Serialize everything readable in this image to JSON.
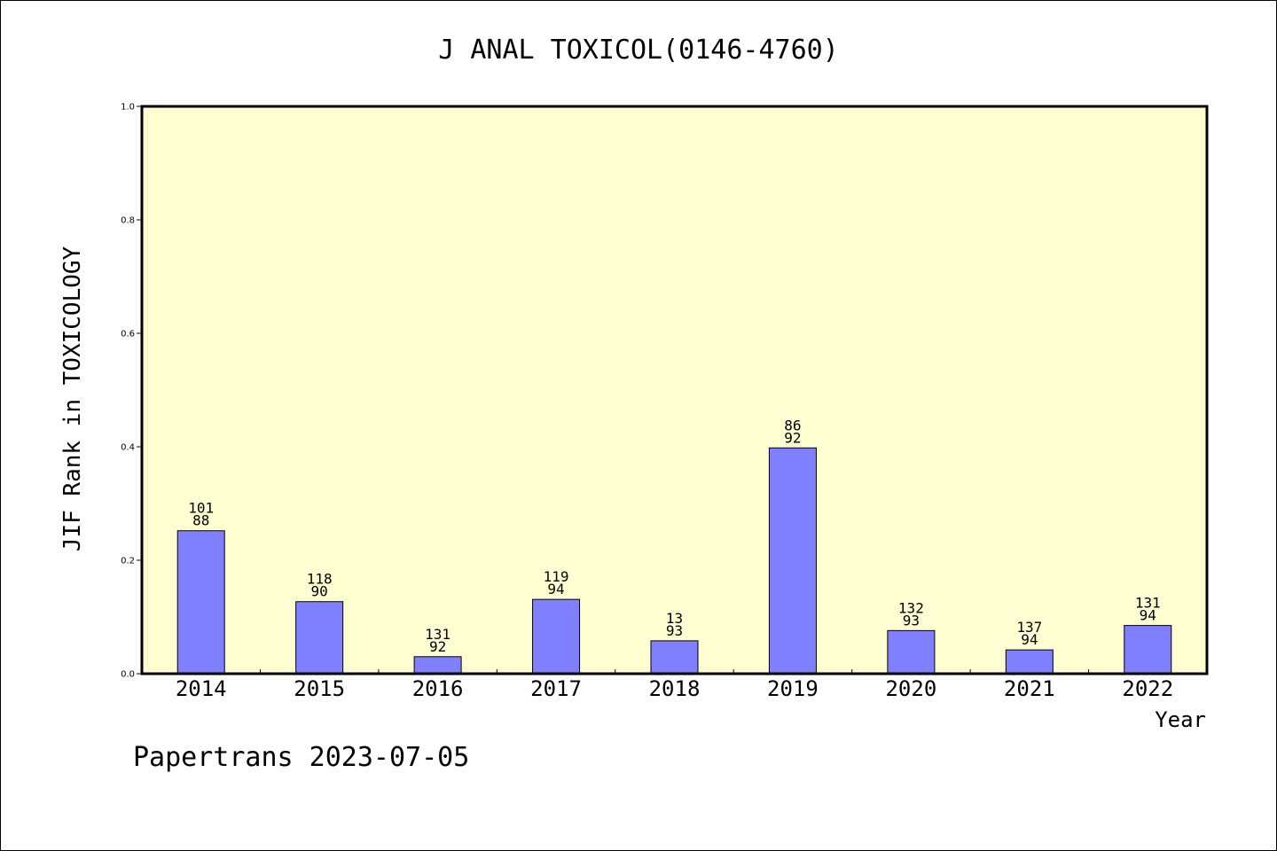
{
  "chart_data": {
    "type": "bar",
    "title": "J ANAL TOXICOL(0146-4760)",
    "xlabel": "Year",
    "ylabel": "JIF Rank in TOXICOLOGY",
    "ylim": [
      0,
      1.0
    ],
    "yticks": [
      "0.0",
      "0.2",
      "0.4",
      "0.6",
      "0.8",
      "1.0"
    ],
    "categories": [
      "2014",
      "2015",
      "2016",
      "2017",
      "2018",
      "2019",
      "2020",
      "2021",
      "2022"
    ],
    "values": [
      0.252,
      0.127,
      0.03,
      0.131,
      0.058,
      0.398,
      0.076,
      0.042,
      0.085
    ],
    "labels_top": [
      "101",
      "118",
      "131",
      "119",
      "13",
      "86",
      "132",
      "137",
      "131"
    ],
    "labels_bottom": [
      "88",
      "90",
      "92",
      "94",
      "93",
      "92",
      "93",
      "94",
      "94"
    ],
    "grid": false,
    "legend": "none",
    "colors": {
      "plot_bg": "#FFFFD2",
      "bar": "#8080FF",
      "axis": "#000000"
    }
  },
  "footer": "Papertrans 2023-07-05"
}
